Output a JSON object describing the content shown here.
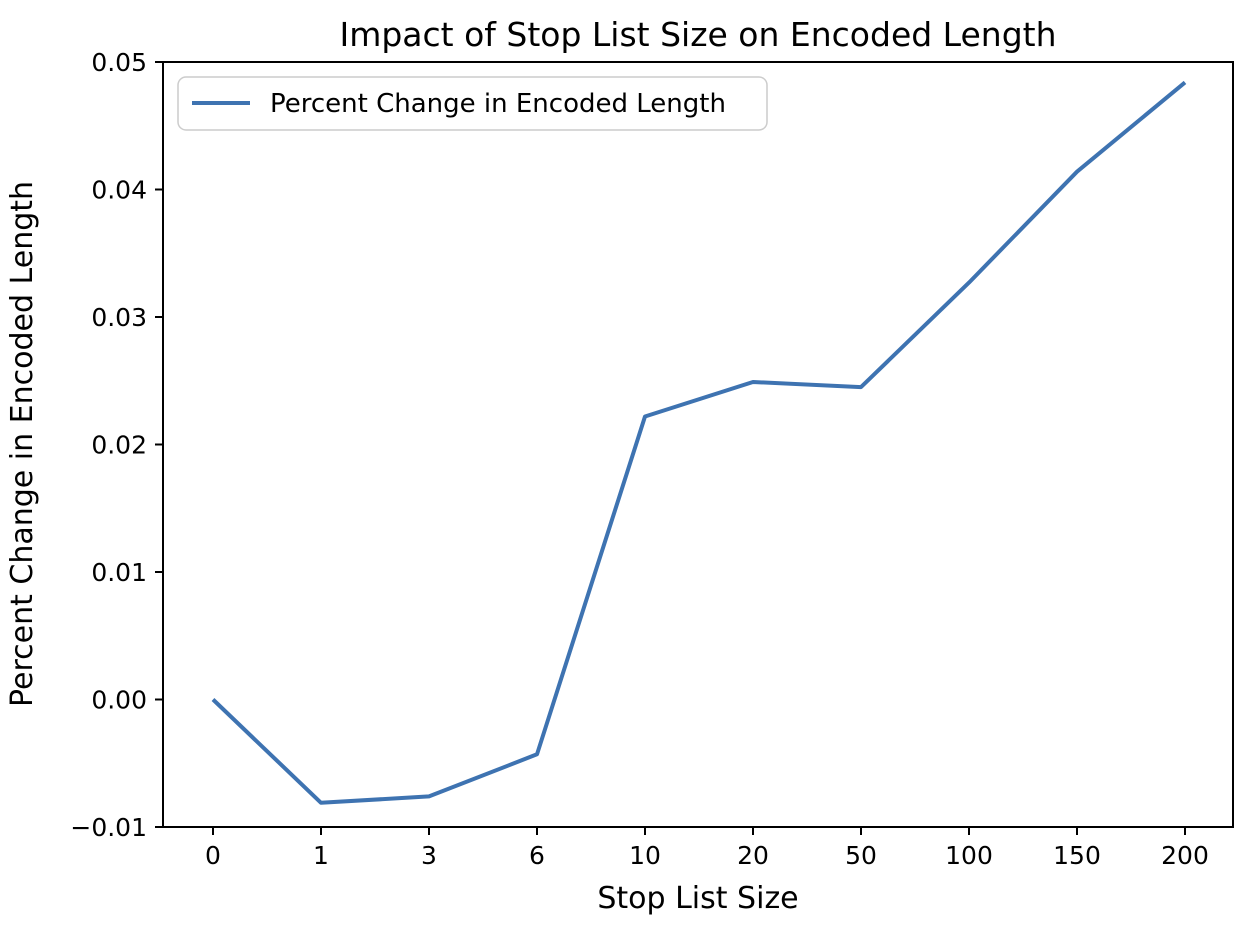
{
  "figure": {
    "background": "#ffffff",
    "spine_color": "#000000"
  },
  "chart_data": {
    "type": "line",
    "title": "Impact of Stop List Size on Encoded Length",
    "xlabel": "Stop List Size",
    "ylabel": "Percent Change in Encoded Length",
    "categories": [
      "0",
      "1",
      "3",
      "6",
      "10",
      "20",
      "50",
      "100",
      "150",
      "200"
    ],
    "series": [
      {
        "name": "Percent Change in Encoded Length",
        "color": "#3e73b1",
        "values": [
          0.0,
          -0.0081,
          -0.0076,
          -0.0043,
          0.0222,
          0.0249,
          0.0245,
          0.0327,
          0.0414,
          0.0484
        ]
      }
    ],
    "ylim": [
      -0.01,
      0.05
    ],
    "yticks": [
      -0.01,
      0.0,
      0.01,
      0.02,
      0.03,
      0.04,
      0.05
    ],
    "ytick_labels": [
      "−0.01",
      "0.00",
      "0.01",
      "0.02",
      "0.03",
      "0.04",
      "0.05"
    ],
    "grid": false,
    "legend": {
      "position": "upper left",
      "entries": [
        "Percent Change in Encoded Length"
      ]
    }
  }
}
